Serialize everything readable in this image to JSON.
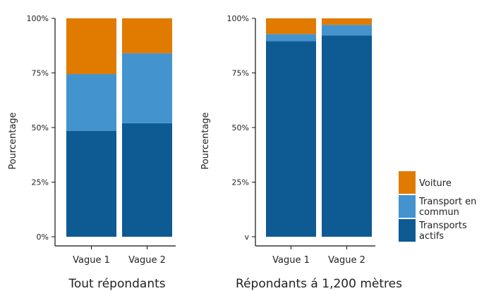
{
  "chart_data": [
    {
      "type": "bar",
      "stacked": true,
      "title": "Tout répondants",
      "ylabel": "Pourcentage",
      "categories": [
        "Vague 1",
        "Vague 2"
      ],
      "y_ticks": [
        "0%",
        "25%",
        "50%",
        "75%",
        "100%"
      ],
      "ylim": [
        0,
        100
      ],
      "series": [
        {
          "name": "Transports actifs",
          "values": [
            48.5,
            52
          ]
        },
        {
          "name": "Transport en commun",
          "values": [
            26,
            32
          ]
        },
        {
          "name": "Voiture",
          "values": [
            25.5,
            16
          ]
        }
      ]
    },
    {
      "type": "bar",
      "stacked": true,
      "title": "Répondants á 1,200 mètres",
      "ylabel": "Pourcentage",
      "categories": [
        "Vague 1",
        "Vague 2"
      ],
      "y_ticks": [
        "v",
        "25%",
        "50%",
        "75%",
        "100%"
      ],
      "ylim": [
        0,
        100
      ],
      "series": [
        {
          "name": "Transports actifs",
          "values": [
            89.5,
            92.2
          ]
        },
        {
          "name": "Transport en commun",
          "values": [
            3.3,
            4.8
          ]
        },
        {
          "name": "Voiture",
          "values": [
            7.2,
            3
          ]
        }
      ]
    }
  ],
  "legend": {
    "items": [
      {
        "lines": [
          "Voiture"
        ],
        "color": "#E07B00"
      },
      {
        "lines": [
          "Transport en",
          "commun"
        ],
        "color": "#4393CE"
      },
      {
        "lines": [
          "Transports",
          "actifs"
        ],
        "color": "#0E5A93"
      }
    ]
  },
  "colors": {
    "Transports actifs": "#0E5A93",
    "Transport en commun": "#4393CE",
    "Voiture": "#E07B00"
  }
}
